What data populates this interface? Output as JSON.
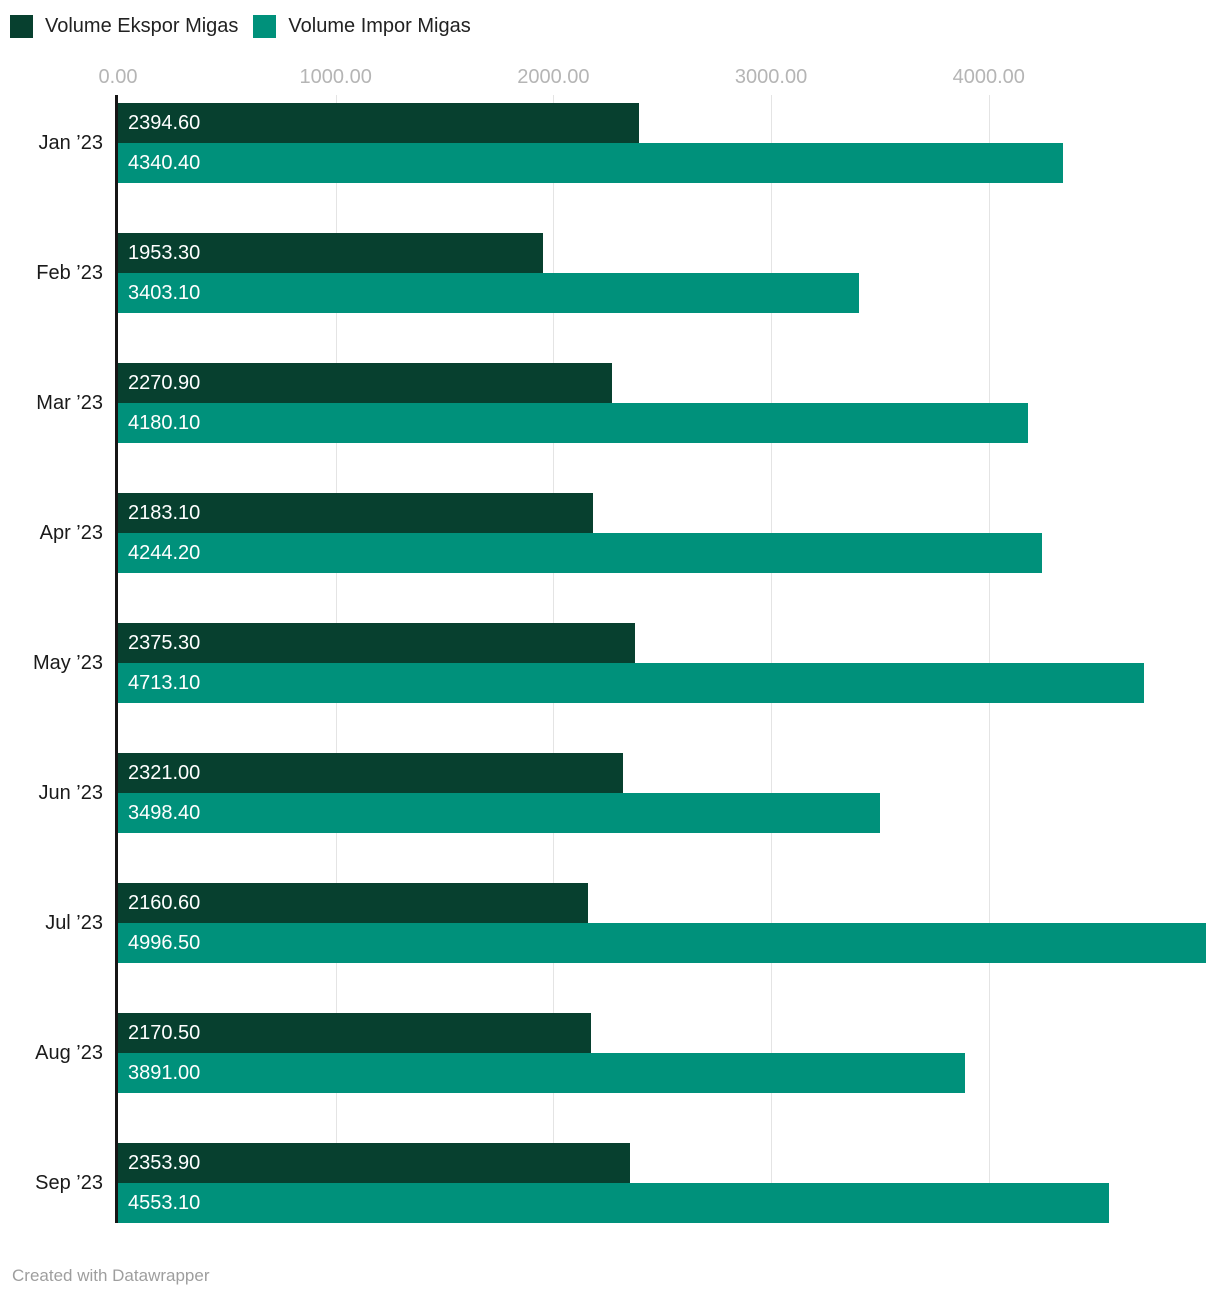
{
  "legend": {
    "position": "top",
    "items": [
      {
        "label": "Volume Ekspor Migas",
        "color": "#07402f"
      },
      {
        "label": "Volume Impor Migas",
        "color": "#00917b"
      }
    ]
  },
  "chart_data": {
    "type": "bar",
    "orientation": "horizontal",
    "title": "",
    "xlabel": "",
    "ylabel": "",
    "grid": true,
    "legend_position": "top",
    "xlim": [
      0,
      5053
    ],
    "x_ticks": [
      "0.00",
      "1000.00",
      "2000.00",
      "3000.00",
      "4000.00"
    ],
    "x_tick_values": [
      0,
      1000,
      2000,
      3000,
      4000
    ],
    "categories": [
      "Jan ’23",
      "Feb ’23",
      "Mar ’23",
      "Apr ’23",
      "May ’23",
      "Jun ’23",
      "Jul ’23",
      "Aug ’23",
      "Sep ’23"
    ],
    "series": [
      {
        "key": "ekspor",
        "name": "Volume Ekspor Migas",
        "color": "#07402f",
        "values": [
          2394.6,
          1953.3,
          2270.9,
          2183.1,
          2375.3,
          2321.0,
          2160.6,
          2170.5,
          2353.9
        ]
      },
      {
        "key": "impor",
        "name": "Volume Impor Migas",
        "color": "#00917b",
        "values": [
          4340.4,
          3403.1,
          4180.1,
          4244.2,
          4713.1,
          3498.4,
          4996.5,
          3891.0,
          4553.1
        ]
      }
    ],
    "value_label_decimals": 2
  },
  "colors": {
    "background": "#ffffff",
    "gridline": "#e4e4e4",
    "axis_line": "#161616",
    "tick_label": "#b5b5b5",
    "category_label": "#1a1a1a",
    "value_label": "#ffffff",
    "credit_text": "#9e9e9e"
  },
  "footer": {
    "credit": "Created with Datawrapper"
  }
}
